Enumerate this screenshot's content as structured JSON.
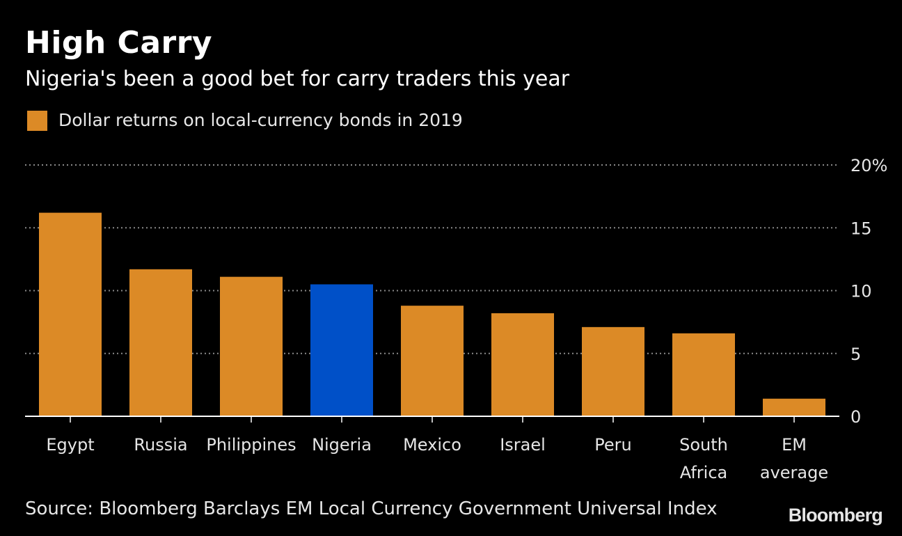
{
  "header": {
    "title": "High Carry",
    "subtitle": "Nigeria's been a good bet for carry traders this year"
  },
  "legend": {
    "label": "Dollar returns on local-currency bonds in 2019"
  },
  "colors": {
    "background": "#000000",
    "bar": "#dc8a26",
    "highlight": "#0050c8",
    "grid": "#8a8a8a",
    "axis": "#ffffff",
    "text": "#e6e6e6"
  },
  "chart_data": {
    "type": "bar",
    "title": "High Carry",
    "subtitle": "Nigeria's been a good bet for carry traders this year",
    "xlabel": "",
    "ylabel": "",
    "ylim": [
      0,
      20
    ],
    "yticks": [
      0,
      5,
      10,
      15,
      20
    ],
    "ytick_labels": [
      "0",
      "5",
      "10",
      "15",
      "20%"
    ],
    "grid": true,
    "legend_position": "top-left",
    "categories": [
      [
        "Egypt"
      ],
      [
        "Russia"
      ],
      [
        "Philippines"
      ],
      [
        "Nigeria"
      ],
      [
        "Mexico"
      ],
      [
        "Israel"
      ],
      [
        "Peru"
      ],
      [
        "South",
        "Africa"
      ],
      [
        "EM",
        "average"
      ]
    ],
    "series": [
      {
        "name": "Dollar returns on local-currency bonds in 2019",
        "values": [
          16.2,
          11.7,
          11.1,
          10.5,
          8.8,
          8.2,
          7.1,
          6.6,
          1.4
        ],
        "highlight_index": 3
      }
    ]
  },
  "footer": {
    "source": "Source: Bloomberg Barclays EM Local Currency Government Universal Index",
    "brand": "Bloomberg"
  }
}
